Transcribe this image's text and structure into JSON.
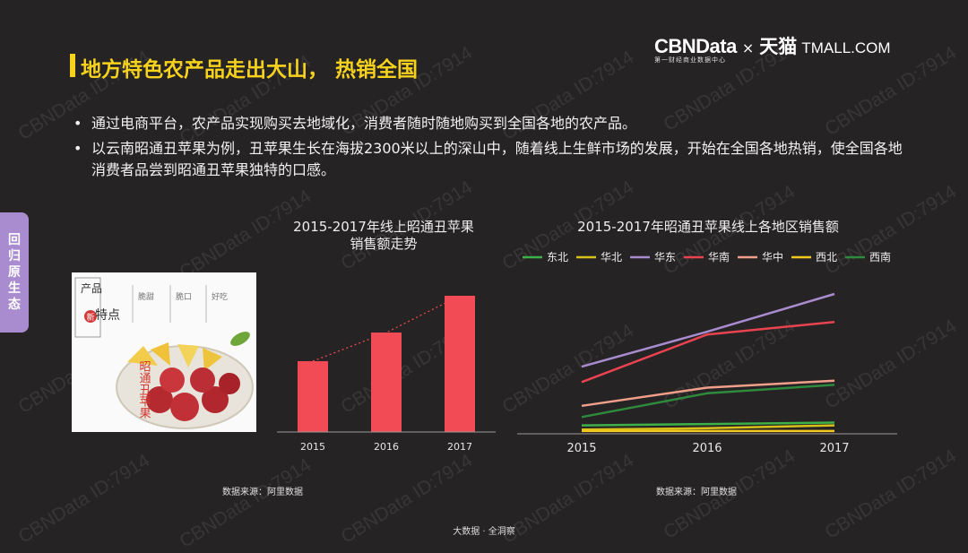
{
  "page": {
    "title": "地方特色农产品走出大山， 热销全国",
    "watermark": "CBNData ID:7914",
    "footer": "大数据 · 全洞察"
  },
  "logo": {
    "cbn": "CBNData",
    "times": "×",
    "tmall_cn": "天猫",
    "tmall_en": "TMALL.COM",
    "subtitle": "第一财经商业数据中心"
  },
  "bullets": [
    "通过电商平台，农产品实现购买去地域化，消费者随时随地购买到全国各地的农产品。",
    "以云南昭通丑苹果为例，丑苹果生长在海拔2300米以上的深山中，随着线上生鲜市场的发展，开始在全国各地热销，使全国各地消费者品尝到昭通丑苹果独特的口感。"
  ],
  "side_tab": [
    "回",
    "归",
    "原",
    "生",
    "态"
  ],
  "photo": {
    "heading_a": "产品",
    "heading_b": "特点",
    "badge": "新",
    "product_name": "昭通丑苹果",
    "cols": [
      "脆甜",
      "脆口",
      "好吃"
    ]
  },
  "chart_data": [
    {
      "type": "bar",
      "title_lines": [
        "2015-2017年线上昭通丑苹果",
        "销售额走势"
      ],
      "categories": [
        "2015",
        "2016",
        "2017"
      ],
      "values": [
        52,
        73,
        100
      ],
      "ylim": [
        0,
        100
      ],
      "trendline": true,
      "bar_color": "#f24b55",
      "grid": false,
      "source": "数据来源：阿里数据"
    },
    {
      "type": "line",
      "title": "2015-2017年昭通丑苹果线上各地区销售额",
      "x": [
        "2015",
        "2016",
        "2017"
      ],
      "ylim": [
        0,
        100
      ],
      "legend_position": "top",
      "grid": false,
      "series": [
        {
          "name": "东北",
          "color": "#3db048",
          "values": [
            6,
            7,
            8
          ]
        },
        {
          "name": "华北",
          "color": "#d8c21a",
          "values": [
            3,
            4,
            6
          ]
        },
        {
          "name": "华东",
          "color": "#a98bd0",
          "values": [
            48,
            73,
            100
          ]
        },
        {
          "name": "华南",
          "color": "#e8434f",
          "values": [
            37,
            71,
            80
          ]
        },
        {
          "name": "华中",
          "color": "#f0a08a",
          "values": [
            20,
            33,
            38
          ]
        },
        {
          "name": "西北",
          "color": "#f2c81e",
          "values": [
            2,
            2,
            2
          ]
        },
        {
          "name": "西南",
          "color": "#2e8a3c",
          "values": [
            12,
            29,
            35
          ]
        }
      ],
      "source": "数据来源：阿里数据"
    }
  ]
}
